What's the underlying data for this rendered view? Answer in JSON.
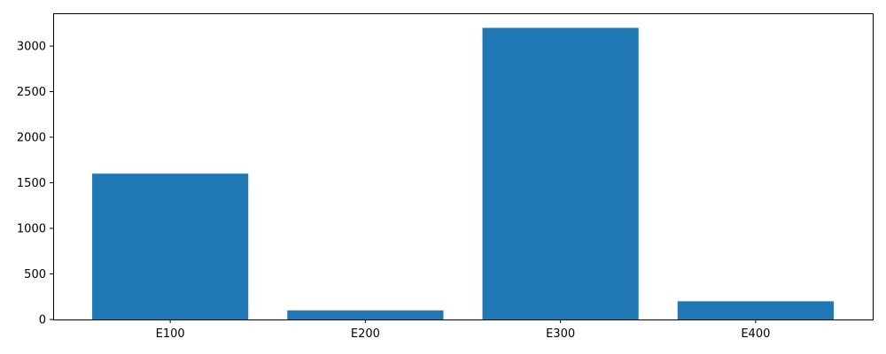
{
  "chart_data": {
    "type": "bar",
    "title": "",
    "xlabel": "",
    "ylabel": "",
    "categories": [
      "E100",
      "E200",
      "E300",
      "E400"
    ],
    "values": [
      1600,
      100,
      3200,
      200
    ],
    "ylim": [
      0,
      3360
    ],
    "yticks": [
      0,
      500,
      1000,
      1500,
      2000,
      2500,
      3000
    ],
    "bar_color": "#1f77b4",
    "grid": false,
    "legend": "none"
  }
}
